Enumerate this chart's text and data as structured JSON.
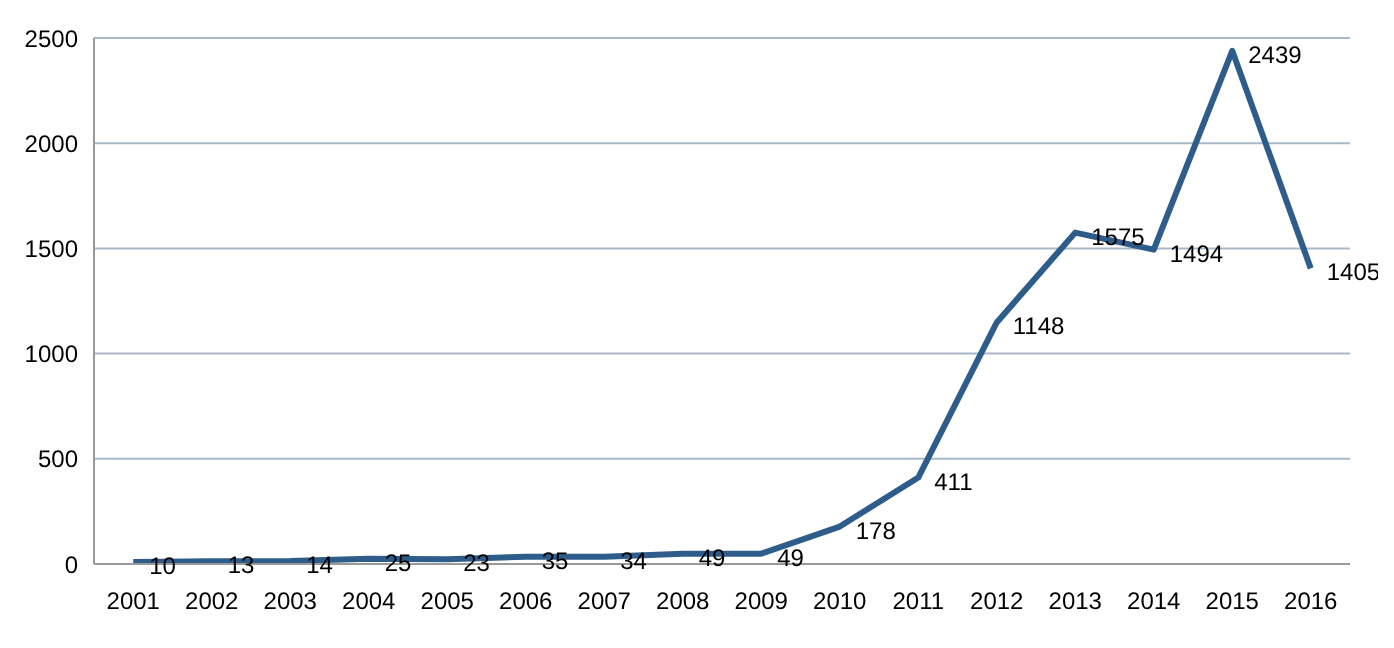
{
  "chart_data": {
    "type": "line",
    "categories": [
      "2001",
      "2002",
      "2003",
      "2004",
      "2005",
      "2006",
      "2007",
      "2008",
      "2009",
      "2010",
      "2011",
      "2012",
      "2013",
      "2014",
      "2015",
      "2016"
    ],
    "series": [
      {
        "color": "#2e5d8c",
        "values": [
          10,
          13,
          14,
          25,
          23,
          35,
          34,
          49,
          49,
          178,
          411,
          1148,
          1575,
          1494,
          2439,
          1405
        ]
      }
    ],
    "ylim": [
      0,
      2500
    ],
    "yticks": [
      0,
      500,
      1000,
      1500,
      2000,
      2500
    ],
    "grid": "y",
    "marker": "none",
    "line_style": "solid",
    "data_labels": true
  }
}
